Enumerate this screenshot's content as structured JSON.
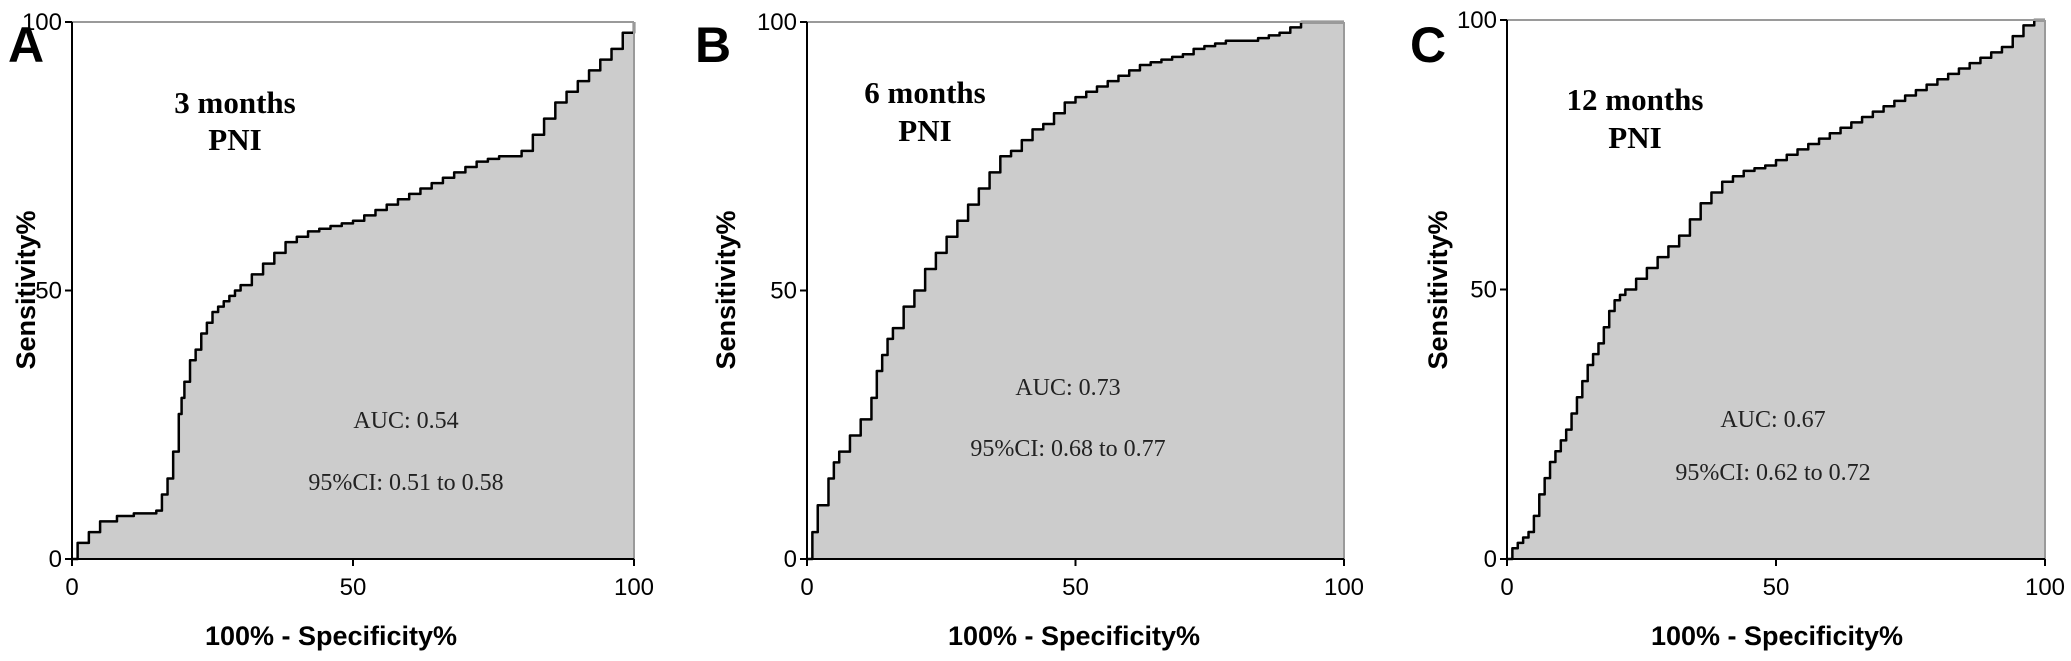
{
  "chart_data": [
    {
      "type": "area",
      "panel_label": "A",
      "title_lines": [
        "3 months",
        "PNI"
      ],
      "xlabel": "100% - Specificity%",
      "ylabel": "Sensitivity%",
      "xlim": [
        0,
        100
      ],
      "ylim": [
        0,
        100
      ],
      "xticks": [
        "0",
        "50",
        "100"
      ],
      "yticks": [
        "0",
        "50",
        "100"
      ],
      "annotations": [
        "AUC: 0.54",
        "95%CI: 0.51 to 0.58"
      ],
      "x": [
        0,
        1,
        3,
        5,
        8,
        11,
        15,
        16,
        17,
        18,
        19,
        19.5,
        20,
        21,
        22,
        23,
        24,
        25,
        26,
        27,
        28,
        29,
        30,
        32,
        34,
        36,
        38,
        40,
        42,
        44,
        46,
        48,
        50,
        52,
        54,
        56,
        58,
        60,
        62,
        64,
        66,
        68,
        70,
        72,
        74,
        76,
        78,
        80,
        82,
        84,
        86,
        88,
        90,
        92,
        94,
        96,
        98,
        100
      ],
      "y": [
        0,
        3,
        5,
        7,
        8,
        8.5,
        9,
        12,
        15,
        20,
        27,
        30,
        33,
        37,
        39,
        42,
        44,
        46,
        47,
        48,
        49,
        50,
        51,
        53,
        55,
        57,
        59,
        60,
        61,
        61.5,
        62,
        62.5,
        63,
        64,
        65,
        66,
        67,
        68,
        69,
        70,
        71,
        72,
        73,
        74,
        74.5,
        75,
        75,
        76,
        79,
        82,
        85,
        87,
        89,
        91,
        93,
        95,
        98,
        100
      ]
    },
    {
      "type": "area",
      "panel_label": "B",
      "title_lines": [
        "6 months",
        "PNI"
      ],
      "xlabel": "100% - Specificity%",
      "ylabel": "Sensitivity%",
      "xlim": [
        0,
        100
      ],
      "ylim": [
        0,
        100
      ],
      "xticks": [
        "0",
        "50",
        "100"
      ],
      "yticks": [
        "0",
        "50",
        "100"
      ],
      "annotations": [
        "AUC: 0.73",
        "95%CI: 0.68 to 0.77"
      ],
      "x": [
        0,
        1,
        2,
        4,
        5,
        6,
        8,
        10,
        12,
        13,
        14,
        15,
        16,
        18,
        20,
        22,
        24,
        26,
        28,
        30,
        32,
        34,
        36,
        38,
        40,
        42,
        44,
        46,
        48,
        50,
        52,
        54,
        56,
        58,
        60,
        62,
        64,
        66,
        68,
        70,
        72,
        74,
        76,
        78,
        80,
        82,
        84,
        86,
        88,
        90,
        92,
        94,
        96,
        98,
        100
      ],
      "y": [
        0,
        5,
        10,
        15,
        18,
        20,
        23,
        26,
        30,
        35,
        38,
        41,
        43,
        47,
        50,
        54,
        57,
        60,
        63,
        66,
        69,
        72,
        75,
        76,
        78,
        80,
        81,
        83,
        85,
        86,
        87,
        88,
        89,
        90,
        91,
        92,
        92.5,
        93,
        93.5,
        94,
        95,
        95.5,
        96,
        96.5,
        96.5,
        96.5,
        97,
        97.5,
        98,
        99,
        100,
        100,
        100,
        100,
        100
      ]
    },
    {
      "type": "area",
      "panel_label": "C",
      "title_lines": [
        "12 months",
        "PNI"
      ],
      "xlabel": "100% - Specificity%",
      "ylabel": "Sensitivity%",
      "xlim": [
        0,
        100
      ],
      "ylim": [
        0,
        100
      ],
      "xticks": [
        "0",
        "50",
        "100"
      ],
      "yticks": [
        "0",
        "50",
        "100"
      ],
      "annotations": [
        "AUC: 0.67",
        "95%CI: 0.62 to 0.72"
      ],
      "x": [
        0,
        1,
        2,
        3,
        4,
        5,
        6,
        7,
        8,
        9,
        10,
        11,
        12,
        13,
        14,
        15,
        16,
        17,
        18,
        19,
        20,
        21,
        22,
        24,
        26,
        28,
        30,
        32,
        34,
        36,
        38,
        40,
        42,
        44,
        46,
        48,
        50,
        52,
        54,
        56,
        58,
        60,
        62,
        64,
        66,
        68,
        70,
        72,
        74,
        76,
        78,
        80,
        82,
        84,
        86,
        88,
        90,
        92,
        94,
        96,
        98,
        100
      ],
      "y": [
        0,
        2,
        3,
        4,
        5,
        8,
        12,
        15,
        18,
        20,
        22,
        24,
        27,
        30,
        33,
        36,
        38,
        40,
        43,
        46,
        48,
        49,
        50,
        52,
        54,
        56,
        58,
        60,
        63,
        66,
        68,
        70,
        71,
        72,
        72.5,
        73,
        74,
        75,
        76,
        77,
        78,
        79,
        80,
        81,
        82,
        83,
        84,
        85,
        86,
        87,
        88,
        89,
        90,
        91,
        92,
        93,
        94,
        95,
        97,
        99,
        100,
        100
      ]
    }
  ]
}
